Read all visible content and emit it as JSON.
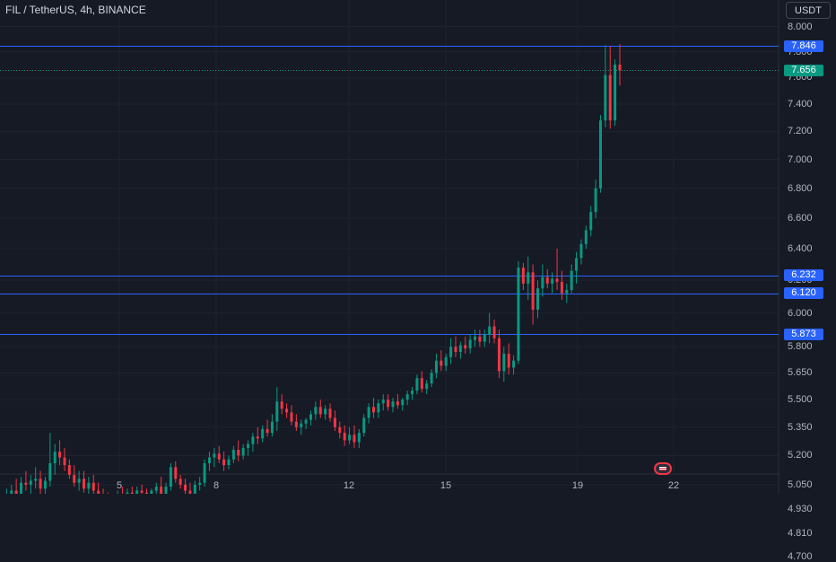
{
  "header": {
    "title": "FIL / TetherUS, 4h, BINANCE",
    "currency_button": "USDT"
  },
  "colors": {
    "up": "#089981",
    "down": "#f23645",
    "level_line": "#2962ff",
    "background": "#161a25"
  },
  "price_tags": [
    {
      "label": "7.846",
      "value": 7.846,
      "kind": "level"
    },
    {
      "label": "7.656",
      "value": 7.656,
      "kind": "last"
    },
    {
      "label": "6.232",
      "value": 6.232,
      "kind": "level"
    },
    {
      "label": "6.120",
      "value": 6.12,
      "kind": "level"
    },
    {
      "label": "5.873",
      "value": 5.873,
      "kind": "level"
    }
  ],
  "event_icon": "us-flag-icon",
  "chart_data": {
    "type": "candlestick",
    "symbol": "FIL / TetherUS",
    "interval": "4h",
    "exchange": "BINANCE",
    "y_axis": {
      "scale": "log",
      "ticks": [
        "8.000",
        "7.800",
        "7.600",
        "7.400",
        "7.200",
        "7.000",
        "6.800",
        "6.600",
        "6.400",
        "6.200",
        "6.000",
        "5.800",
        "5.650",
        "5.500",
        "5.350",
        "5.200",
        "5.050",
        "4.930",
        "4.810",
        "4.700"
      ],
      "range": [
        4.65,
        8.1
      ]
    },
    "x_axis": {
      "ticks": [
        "5",
        "8",
        "12",
        "15",
        "19",
        "22"
      ]
    },
    "horizontal_levels": [
      7.846,
      6.232,
      6.12,
      5.873
    ],
    "last_price": 7.656,
    "candles": [
      [
        4.9,
        4.99,
        4.87,
        4.96
      ],
      [
        4.96,
        5.03,
        4.92,
        4.99
      ],
      [
        4.99,
        5.05,
        4.95,
        5.02
      ],
      [
        5.02,
        5.08,
        4.98,
        5.0
      ],
      [
        5.0,
        5.09,
        4.97,
        5.06
      ],
      [
        5.06,
        5.12,
        5.02,
        5.05
      ],
      [
        5.05,
        5.1,
        5.0,
        5.07
      ],
      [
        5.07,
        5.14,
        5.03,
        5.08
      ],
      [
        5.08,
        5.12,
        5.0,
        5.03
      ],
      [
        5.03,
        5.09,
        5.0,
        5.07
      ],
      [
        5.07,
        5.32,
        5.04,
        5.16
      ],
      [
        5.16,
        5.26,
        5.1,
        5.22
      ],
      [
        5.22,
        5.28,
        5.15,
        5.19
      ],
      [
        5.19,
        5.24,
        5.12,
        5.15
      ],
      [
        5.15,
        5.18,
        5.08,
        5.1
      ],
      [
        5.1,
        5.15,
        5.04,
        5.06
      ],
      [
        5.06,
        5.12,
        5.02,
        5.08
      ],
      [
        5.08,
        5.12,
        5.01,
        5.03
      ],
      [
        5.03,
        5.09,
        5.0,
        5.06
      ],
      [
        5.06,
        5.1,
        4.99,
        5.02
      ],
      [
        5.02,
        5.06,
        4.95,
        4.99
      ],
      [
        4.99,
        5.03,
        4.94,
        4.97
      ],
      [
        4.97,
        5.01,
        4.9,
        4.94
      ],
      [
        4.94,
        5.0,
        4.87,
        4.97
      ],
      [
        4.97,
        5.02,
        4.94,
        5.0
      ],
      [
        5.0,
        5.04,
        4.96,
        4.98
      ],
      [
        4.98,
        5.03,
        4.95,
        5.01
      ],
      [
        5.01,
        5.04,
        4.97,
        5.0
      ],
      [
        5.0,
        5.04,
        4.97,
        5.02
      ],
      [
        5.02,
        5.05,
        4.99,
        5.01
      ],
      [
        5.01,
        5.03,
        4.96,
        4.99
      ],
      [
        4.99,
        5.03,
        4.96,
        5.02
      ],
      [
        5.02,
        5.06,
        5.0,
        5.04
      ],
      [
        5.04,
        5.09,
        4.97,
        4.99
      ],
      [
        4.99,
        5.06,
        4.97,
        5.04
      ],
      [
        5.04,
        5.16,
        5.02,
        5.14
      ],
      [
        5.14,
        5.17,
        5.06,
        5.08
      ],
      [
        5.08,
        5.1,
        5.03,
        5.05
      ],
      [
        5.05,
        5.08,
        4.99,
        5.02
      ],
      [
        5.02,
        5.06,
        4.98,
        5.0
      ],
      [
        5.0,
        5.07,
        4.98,
        5.05
      ],
      [
        5.05,
        5.09,
        5.02,
        5.06
      ],
      [
        5.06,
        5.18,
        5.04,
        5.16
      ],
      [
        5.16,
        5.22,
        5.12,
        5.19
      ],
      [
        5.19,
        5.24,
        5.14,
        5.21
      ],
      [
        5.21,
        5.25,
        5.16,
        5.18
      ],
      [
        5.18,
        5.22,
        5.12,
        5.15
      ],
      [
        5.15,
        5.2,
        5.13,
        5.18
      ],
      [
        5.18,
        5.25,
        5.16,
        5.23
      ],
      [
        5.23,
        5.28,
        5.17,
        5.2
      ],
      [
        5.2,
        5.26,
        5.18,
        5.24
      ],
      [
        5.24,
        5.28,
        5.2,
        5.26
      ],
      [
        5.26,
        5.32,
        5.22,
        5.3
      ],
      [
        5.3,
        5.35,
        5.26,
        5.29
      ],
      [
        5.29,
        5.36,
        5.27,
        5.34
      ],
      [
        5.34,
        5.39,
        5.3,
        5.32
      ],
      [
        5.32,
        5.42,
        5.3,
        5.38
      ],
      [
        5.38,
        5.57,
        5.33,
        5.49
      ],
      [
        5.49,
        5.53,
        5.42,
        5.45
      ],
      [
        5.45,
        5.48,
        5.4,
        5.43
      ],
      [
        5.43,
        5.47,
        5.36,
        5.38
      ],
      [
        5.38,
        5.42,
        5.33,
        5.35
      ],
      [
        5.35,
        5.39,
        5.31,
        5.37
      ],
      [
        5.37,
        5.4,
        5.34,
        5.39
      ],
      [
        5.39,
        5.44,
        5.36,
        5.42
      ],
      [
        5.42,
        5.49,
        5.39,
        5.46
      ],
      [
        5.46,
        5.5,
        5.4,
        5.42
      ],
      [
        5.42,
        5.47,
        5.39,
        5.45
      ],
      [
        5.45,
        5.48,
        5.38,
        5.4
      ],
      [
        5.4,
        5.44,
        5.33,
        5.35
      ],
      [
        5.35,
        5.38,
        5.29,
        5.32
      ],
      [
        5.32,
        5.36,
        5.25,
        5.28
      ],
      [
        5.28,
        5.35,
        5.26,
        5.31
      ],
      [
        5.31,
        5.36,
        5.24,
        5.27
      ],
      [
        5.27,
        5.34,
        5.24,
        5.32
      ],
      [
        5.32,
        5.42,
        5.3,
        5.4
      ],
      [
        5.4,
        5.48,
        5.37,
        5.46
      ],
      [
        5.46,
        5.51,
        5.4,
        5.43
      ],
      [
        5.43,
        5.5,
        5.4,
        5.48
      ],
      [
        5.48,
        5.53,
        5.44,
        5.5
      ],
      [
        5.5,
        5.53,
        5.44,
        5.46
      ],
      [
        5.46,
        5.51,
        5.43,
        5.49
      ],
      [
        5.49,
        5.53,
        5.45,
        5.47
      ],
      [
        5.47,
        5.51,
        5.44,
        5.5
      ],
      [
        5.5,
        5.55,
        5.47,
        5.53
      ],
      [
        5.53,
        5.57,
        5.5,
        5.55
      ],
      [
        5.55,
        5.64,
        5.53,
        5.62
      ],
      [
        5.62,
        5.66,
        5.54,
        5.56
      ],
      [
        5.56,
        5.61,
        5.53,
        5.59
      ],
      [
        5.59,
        5.67,
        5.57,
        5.65
      ],
      [
        5.65,
        5.76,
        5.62,
        5.72
      ],
      [
        5.72,
        5.78,
        5.66,
        5.69
      ],
      [
        5.69,
        5.76,
        5.66,
        5.74
      ],
      [
        5.74,
        5.85,
        5.7,
        5.8
      ],
      [
        5.8,
        5.86,
        5.74,
        5.77
      ],
      [
        5.77,
        5.83,
        5.73,
        5.81
      ],
      [
        5.81,
        5.86,
        5.76,
        5.79
      ],
      [
        5.79,
        5.87,
        5.76,
        5.84
      ],
      [
        5.84,
        5.9,
        5.8,
        5.86
      ],
      [
        5.86,
        5.9,
        5.8,
        5.83
      ],
      [
        5.83,
        5.9,
        5.8,
        5.87
      ],
      [
        5.87,
        6.0,
        5.82,
        5.92
      ],
      [
        5.92,
        5.96,
        5.82,
        5.85
      ],
      [
        5.85,
        5.9,
        5.62,
        5.66
      ],
      [
        5.66,
        5.8,
        5.6,
        5.76
      ],
      [
        5.76,
        5.82,
        5.64,
        5.68
      ],
      [
        5.68,
        5.75,
        5.64,
        5.72
      ],
      [
        5.72,
        6.32,
        5.7,
        6.28
      ],
      [
        6.28,
        6.31,
        6.14,
        6.18
      ],
      [
        6.18,
        6.35,
        6.08,
        6.25
      ],
      [
        6.25,
        6.3,
        5.93,
        6.02
      ],
      [
        6.02,
        6.2,
        5.97,
        6.15
      ],
      [
        6.15,
        6.3,
        6.1,
        6.22
      ],
      [
        6.22,
        6.27,
        6.15,
        6.18
      ],
      [
        6.18,
        6.25,
        6.12,
        6.21
      ],
      [
        6.21,
        6.4,
        6.14,
        6.19
      ],
      [
        6.19,
        6.26,
        6.08,
        6.12
      ],
      [
        6.12,
        6.18,
        6.06,
        6.14
      ],
      [
        6.14,
        6.3,
        6.12,
        6.26
      ],
      [
        6.26,
        6.38,
        6.18,
        6.34
      ],
      [
        6.34,
        6.46,
        6.3,
        6.43
      ],
      [
        6.43,
        6.55,
        6.4,
        6.52
      ],
      [
        6.52,
        6.68,
        6.48,
        6.64
      ],
      [
        6.64,
        6.86,
        6.6,
        6.8
      ],
      [
        6.8,
        7.32,
        6.77,
        7.28
      ],
      [
        7.28,
        7.85,
        7.23,
        7.62
      ],
      [
        7.62,
        7.84,
        7.22,
        7.28
      ],
      [
        7.28,
        7.74,
        7.24,
        7.7
      ],
      [
        7.7,
        7.86,
        7.54,
        7.656
      ]
    ]
  }
}
